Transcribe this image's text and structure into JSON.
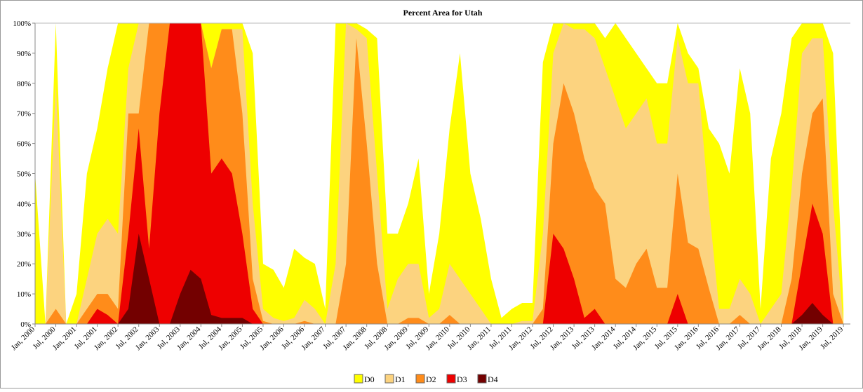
{
  "chart_data": {
    "type": "area",
    "title": "Percent Area for Utah",
    "x": [
      "2000-01",
      "2000-04",
      "2000-07",
      "2000-10",
      "2001-01",
      "2001-04",
      "2001-07",
      "2001-10",
      "2002-01",
      "2002-04",
      "2002-07",
      "2002-10",
      "2003-01",
      "2003-04",
      "2003-07",
      "2003-10",
      "2004-01",
      "2004-04",
      "2004-07",
      "2004-10",
      "2005-01",
      "2005-04",
      "2005-07",
      "2005-10",
      "2006-01",
      "2006-04",
      "2006-07",
      "2006-10",
      "2007-01",
      "2007-04",
      "2007-07",
      "2007-10",
      "2008-01",
      "2008-04",
      "2008-07",
      "2008-10",
      "2009-01",
      "2009-04",
      "2009-07",
      "2009-10",
      "2010-01",
      "2010-04",
      "2010-07",
      "2010-10",
      "2011-01",
      "2011-04",
      "2011-07",
      "2011-10",
      "2012-01",
      "2012-04",
      "2012-07",
      "2012-10",
      "2013-01",
      "2013-04",
      "2013-07",
      "2013-10",
      "2014-01",
      "2014-04",
      "2014-07",
      "2014-10",
      "2015-01",
      "2015-04",
      "2015-07",
      "2015-10",
      "2016-01",
      "2016-04",
      "2016-07",
      "2016-10",
      "2017-01",
      "2017-04",
      "2017-07",
      "2017-10",
      "2018-01",
      "2018-04",
      "2018-07",
      "2018-10",
      "2019-01",
      "2019-04",
      "2019-07"
    ],
    "series": [
      {
        "name": "D0",
        "color": "#ffff00",
        "values": [
          50,
          0,
          100,
          0,
          10,
          50,
          65,
          85,
          100,
          100,
          100,
          100,
          100,
          100,
          100,
          100,
          100,
          100,
          100,
          100,
          100,
          90,
          20,
          18,
          12,
          25,
          22,
          20,
          5,
          100,
          100,
          100,
          98,
          95,
          30,
          30,
          40,
          55,
          10,
          30,
          65,
          90,
          50,
          35,
          15,
          2,
          5,
          7,
          7,
          87,
          100,
          100,
          100,
          100,
          100,
          95,
          100,
          95,
          90,
          85,
          80,
          80,
          100,
          90,
          85,
          65,
          60,
          50,
          85,
          70,
          5,
          55,
          70,
          95,
          100,
          100,
          100,
          90,
          5
        ]
      },
      {
        "name": "D1",
        "color": "#fcd37f",
        "values": [
          0,
          0,
          80,
          0,
          0,
          15,
          30,
          35,
          30,
          85,
          100,
          100,
          100,
          100,
          100,
          100,
          100,
          85,
          98,
          98,
          98,
          40,
          5,
          2,
          1,
          2,
          8,
          5,
          0,
          20,
          100,
          98,
          95,
          50,
          5,
          15,
          20,
          20,
          2,
          5,
          20,
          15,
          10,
          5,
          0,
          0,
          0,
          1,
          1,
          30,
          90,
          100,
          98,
          98,
          95,
          85,
          75,
          65,
          70,
          75,
          60,
          60,
          95,
          80,
          80,
          40,
          5,
          5,
          15,
          10,
          0,
          5,
          10,
          45,
          90,
          95,
          95,
          40,
          0
        ]
      },
      {
        "name": "D2",
        "color": "#ff8c1a",
        "values": [
          0,
          0,
          5,
          0,
          0,
          5,
          10,
          10,
          5,
          70,
          70,
          100,
          100,
          100,
          100,
          100,
          100,
          85,
          98,
          98,
          70,
          15,
          1,
          0,
          0,
          0,
          1,
          0,
          0,
          0,
          20,
          95,
          60,
          20,
          0,
          0,
          2,
          2,
          0,
          0,
          3,
          0,
          0,
          0,
          0,
          0,
          0,
          0,
          0,
          5,
          60,
          80,
          70,
          55,
          45,
          40,
          15,
          12,
          20,
          25,
          12,
          12,
          50,
          27,
          25,
          12,
          0,
          0,
          3,
          0,
          0,
          0,
          0,
          15,
          50,
          70,
          75,
          10,
          0
        ]
      },
      {
        "name": "D3",
        "color": "#ee0000",
        "values": [
          0,
          0,
          0,
          0,
          0,
          0,
          5,
          3,
          0,
          30,
          65,
          25,
          70,
          100,
          100,
          100,
          100,
          50,
          55,
          50,
          30,
          5,
          0,
          0,
          0,
          0,
          0,
          0,
          0,
          0,
          0,
          0,
          0,
          0,
          0,
          0,
          0,
          0,
          0,
          0,
          0,
          0,
          0,
          0,
          0,
          0,
          0,
          0,
          0,
          0,
          30,
          25,
          15,
          2,
          5,
          0,
          0,
          0,
          0,
          0,
          0,
          0,
          10,
          0,
          0,
          0,
          0,
          0,
          0,
          0,
          0,
          0,
          0,
          0,
          20,
          40,
          30,
          0,
          0
        ]
      },
      {
        "name": "D4",
        "color": "#730000",
        "values": [
          0,
          0,
          0,
          0,
          0,
          0,
          0,
          0,
          0,
          5,
          30,
          15,
          0,
          0,
          10,
          18,
          15,
          3,
          2,
          2,
          2,
          0,
          0,
          0,
          0,
          0,
          0,
          0,
          0,
          0,
          0,
          0,
          0,
          0,
          0,
          0,
          0,
          0,
          0,
          0,
          0,
          0,
          0,
          0,
          0,
          0,
          0,
          0,
          0,
          0,
          0,
          0,
          0,
          0,
          0,
          0,
          0,
          0,
          0,
          0,
          0,
          0,
          0,
          0,
          0,
          0,
          0,
          0,
          0,
          0,
          0,
          0,
          0,
          0,
          3,
          7,
          3,
          0,
          0
        ]
      }
    ],
    "xlim": [
      "2000-01",
      "2019-09"
    ],
    "xticks": [
      {
        "value": "2000-01",
        "label": "Jan, 2000"
      },
      {
        "value": "2000-07",
        "label": "Jul, 2000"
      },
      {
        "value": "2001-01",
        "label": "Jan, 2001"
      },
      {
        "value": "2001-07",
        "label": "Jul, 2001"
      },
      {
        "value": "2002-01",
        "label": "Jan, 2002"
      },
      {
        "value": "2002-07",
        "label": "Jul, 2002"
      },
      {
        "value": "2003-01",
        "label": "Jan, 2003"
      },
      {
        "value": "2003-07",
        "label": "Jul, 2003"
      },
      {
        "value": "2004-01",
        "label": "Jan, 2004"
      },
      {
        "value": "2004-07",
        "label": "Jul, 2004"
      },
      {
        "value": "2005-01",
        "label": "Jan, 2005"
      },
      {
        "value": "2005-07",
        "label": "Jul, 2005"
      },
      {
        "value": "2006-01",
        "label": "Jan, 2006"
      },
      {
        "value": "2006-07",
        "label": "Jul, 2006"
      },
      {
        "value": "2007-01",
        "label": "Jan, 2007"
      },
      {
        "value": "2007-07",
        "label": "Jul, 2007"
      },
      {
        "value": "2008-01",
        "label": "Jan, 2008"
      },
      {
        "value": "2008-07",
        "label": "Jul, 2008"
      },
      {
        "value": "2009-01",
        "label": "Jan, 2009"
      },
      {
        "value": "2009-07",
        "label": "Jul, 2009"
      },
      {
        "value": "2010-01",
        "label": "Jan, 2010"
      },
      {
        "value": "2010-07",
        "label": "Jul, 2010"
      },
      {
        "value": "2011-01",
        "label": "Jan, 2011"
      },
      {
        "value": "2011-07",
        "label": "Jul, 2011"
      },
      {
        "value": "2012-01",
        "label": "Jan, 2012"
      },
      {
        "value": "2012-07",
        "label": "Jul, 2012"
      },
      {
        "value": "2013-01",
        "label": "Jan, 2013"
      },
      {
        "value": "2013-07",
        "label": "Jul, 2013"
      },
      {
        "value": "2014-01",
        "label": "Jan, 2014"
      },
      {
        "value": "2014-07",
        "label": "Jul, 2014"
      },
      {
        "value": "2015-01",
        "label": "Jan, 2015"
      },
      {
        "value": "2015-07",
        "label": "Jul, 2015"
      },
      {
        "value": "2016-01",
        "label": "Jan, 2016"
      },
      {
        "value": "2016-07",
        "label": "Jul, 2016"
      },
      {
        "value": "2017-01",
        "label": "Jan, 2017"
      },
      {
        "value": "2017-07",
        "label": "Jul, 2017"
      },
      {
        "value": "2018-01",
        "label": "Jan, 2018"
      },
      {
        "value": "2018-07",
        "label": "Jul, 2018"
      },
      {
        "value": "2019-01",
        "label": "Jan, 2019"
      },
      {
        "value": "2019-07",
        "label": "Jul, 2019"
      }
    ],
    "ylim": [
      0,
      100
    ],
    "yticks": [
      {
        "value": 0,
        "label": "0%"
      },
      {
        "value": 10,
        "label": "10%"
      },
      {
        "value": 20,
        "label": "20%"
      },
      {
        "value": 30,
        "label": "30%"
      },
      {
        "value": 40,
        "label": "40%"
      },
      {
        "value": 50,
        "label": "50%"
      },
      {
        "value": 60,
        "label": "60%"
      },
      {
        "value": 70,
        "label": "70%"
      },
      {
        "value": 80,
        "label": "80%"
      },
      {
        "value": 90,
        "label": "90%"
      },
      {
        "value": 100,
        "label": "100%"
      }
    ],
    "legend": "bottom"
  }
}
